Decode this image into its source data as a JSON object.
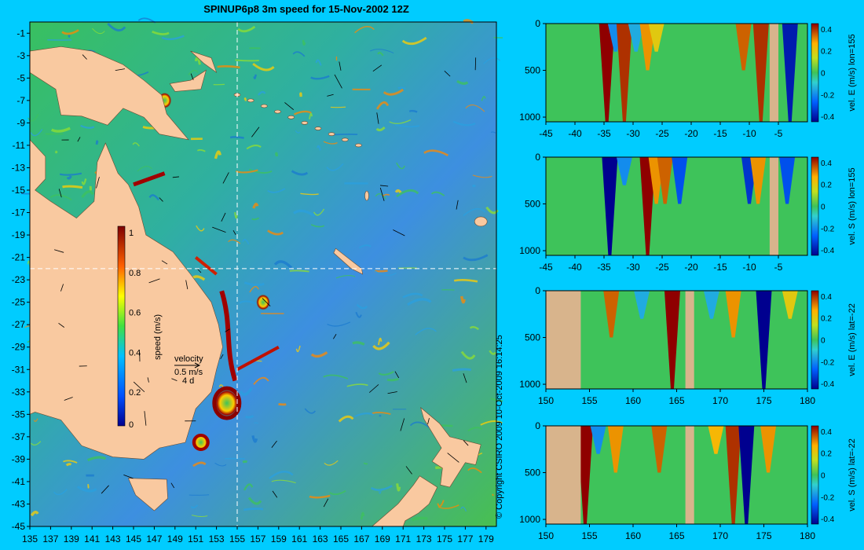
{
  "title": "SPINUP6p8 3m speed for 15-Nov-2002 12Z",
  "copyright": "© Copyright CSIRO 2009   10-Oct-2009 16:14:25",
  "colors": {
    "background": "#00ccff",
    "land": "#f9c9a0",
    "section_land": "#d8b48c",
    "ocean_low": "#2e6fd6",
    "ocean_mid": "#3ec35a",
    "ocean_high": "#8b0000"
  },
  "chart_data": [
    {
      "type": "heatmap",
      "name": "speed map",
      "xlim": [
        135,
        180
      ],
      "ylim": [
        -45,
        0
      ],
      "x_ticks": [
        "135",
        "137",
        "139",
        "141",
        "143",
        "145",
        "147",
        "149",
        "151",
        "153",
        "155",
        "157",
        "159",
        "161",
        "163",
        "165",
        "167",
        "169",
        "171",
        "173",
        "175",
        "177",
        "179"
      ],
      "y_ticks": [
        "-1",
        "-3",
        "-5",
        "-7",
        "-9",
        "-11",
        "-13",
        "-15",
        "-17",
        "-19",
        "-21",
        "-23",
        "-25",
        "-27",
        "-29",
        "-31",
        "-33",
        "-35",
        "-37",
        "-39",
        "-41",
        "-43",
        "-45"
      ],
      "section_lines": {
        "lon": 155,
        "lat": -22
      },
      "colorbar": {
        "label": "speed (m/s)",
        "range": [
          0,
          1
        ],
        "ticks": [
          "0",
          "0.2",
          "0.4",
          "0.6",
          "0.8",
          "1"
        ]
      },
      "velocity_legend": {
        "label": "velocity",
        "value": "0.5 m/s",
        "note": "4 d"
      }
    },
    {
      "type": "heatmap",
      "name": "section-1",
      "label": "vel. E (m/s) lon=155",
      "x_ticks": [
        "-45",
        "-40",
        "-35",
        "-30",
        "-25",
        "-20",
        "-15",
        "-10",
        "-5"
      ],
      "xlim": [
        -45,
        0
      ],
      "y_ticks": [
        "0",
        "500",
        "1000"
      ],
      "ylim": [
        0,
        1050
      ],
      "colorbar_ticks": [
        "0.4",
        "0.2",
        "0",
        "-0.2",
        "-0.4"
      ],
      "clim": [
        -0.45,
        0.45
      ],
      "land_bands": [
        [
          -6.5,
          -5
        ]
      ],
      "features": [
        {
          "x": -34.5,
          "value": 0.45
        },
        {
          "x": -33,
          "value": -0.2
        },
        {
          "x": -31.5,
          "value": 0.4
        },
        {
          "x": -29.5,
          "value": -0.15
        },
        {
          "x": -27.5,
          "value": 0.3
        },
        {
          "x": -26,
          "value": 0.2
        },
        {
          "x": -11,
          "value": 0.35
        },
        {
          "x": -8,
          "value": 0.4
        },
        {
          "x": -3,
          "value": -0.4
        }
      ]
    },
    {
      "type": "heatmap",
      "name": "section-2",
      "label": "vel. S (m/s) lon=155",
      "x_ticks": [
        "-45",
        "-40",
        "-35",
        "-30",
        "-25",
        "-20",
        "-15",
        "-10",
        "-5"
      ],
      "xlim": [
        -45,
        0
      ],
      "y_ticks": [
        "0",
        "500",
        "1000"
      ],
      "ylim": [
        0,
        1050
      ],
      "colorbar_ticks": [
        "0.4",
        "0.2",
        "0",
        "-0.2",
        "-0.4"
      ],
      "clim": [
        -0.45,
        0.45
      ],
      "land_bands": [
        [
          -6.5,
          -5
        ]
      ],
      "features": [
        {
          "x": -34,
          "value": -0.45
        },
        {
          "x": -31.5,
          "value": -0.2
        },
        {
          "x": -27.5,
          "value": 0.45
        },
        {
          "x": -26,
          "value": 0.3
        },
        {
          "x": -24.5,
          "value": 0.35
        },
        {
          "x": -22,
          "value": -0.3
        },
        {
          "x": -10,
          "value": -0.35
        },
        {
          "x": -8.5,
          "value": 0.3
        },
        {
          "x": -3.5,
          "value": -0.3
        }
      ]
    },
    {
      "type": "heatmap",
      "name": "section-3",
      "label": "vel. E (m/s) lat=-22",
      "x_ticks": [
        "150",
        "155",
        "160",
        "165",
        "170",
        "175",
        "180"
      ],
      "xlim": [
        150,
        180
      ],
      "y_ticks": [
        "0",
        "500",
        "1000"
      ],
      "ylim": [
        0,
        1050
      ],
      "colorbar_ticks": [
        "0.4",
        "0.2",
        "0",
        "-0.2",
        "-0.4"
      ],
      "clim": [
        -0.45,
        0.45
      ],
      "land_bands": [
        [
          150,
          154
        ],
        [
          166,
          167
        ]
      ],
      "features": [
        {
          "x": 157.5,
          "value": 0.35
        },
        {
          "x": 161,
          "value": -0.15
        },
        {
          "x": 164.5,
          "value": 0.45
        },
        {
          "x": 169,
          "value": -0.15
        },
        {
          "x": 171.5,
          "value": 0.3
        },
        {
          "x": 175,
          "value": -0.45
        },
        {
          "x": 178,
          "value": 0.2
        }
      ]
    },
    {
      "type": "heatmap",
      "name": "section-4",
      "label": "vel. S (m/s) lat=-22",
      "x_ticks": [
        "150",
        "155",
        "160",
        "165",
        "170",
        "175",
        "180"
      ],
      "xlim": [
        150,
        180
      ],
      "y_ticks": [
        "0",
        "500",
        "1000"
      ],
      "ylim": [
        0,
        1050
      ],
      "colorbar_ticks": [
        "0.4",
        "0.2",
        "0",
        "-0.2",
        "-0.4"
      ],
      "clim": [
        -0.45,
        0.45
      ],
      "land_bands": [
        [
          150,
          154
        ],
        [
          166,
          167
        ]
      ],
      "features": [
        {
          "x": 154.5,
          "value": 0.45
        },
        {
          "x": 156,
          "value": -0.2
        },
        {
          "x": 158,
          "value": 0.3
        },
        {
          "x": 163,
          "value": 0.35
        },
        {
          "x": 169.5,
          "value": 0.25
        },
        {
          "x": 171.5,
          "value": 0.4
        },
        {
          "x": 173,
          "value": -0.45
        },
        {
          "x": 175.5,
          "value": 0.3
        }
      ]
    }
  ]
}
